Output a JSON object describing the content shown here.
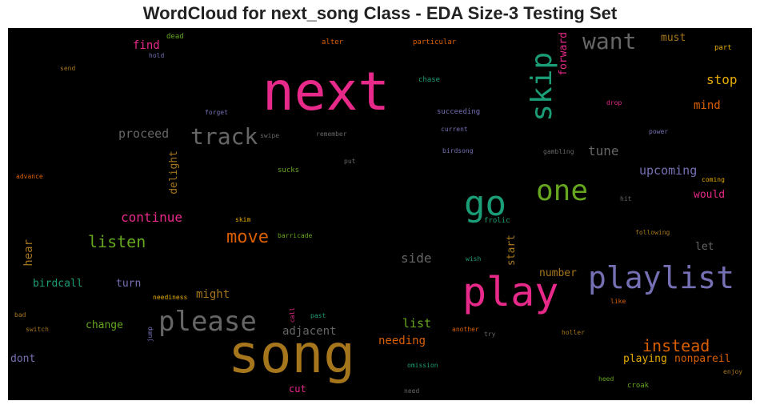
{
  "title": "WordCloud for next_song Class - EDA Size-3 Testing Set",
  "words": [
    {
      "text": "next",
      "color": "#e7298a"
    },
    {
      "text": "song",
      "color": "#a6761d"
    },
    {
      "text": "play",
      "color": "#e7298a"
    },
    {
      "text": "playlist",
      "color": "#7570b3"
    },
    {
      "text": "skip",
      "color": "#1b9e77"
    },
    {
      "text": "go",
      "color": "#1b9e77"
    },
    {
      "text": "one",
      "color": "#66a61e"
    },
    {
      "text": "please",
      "color": "#666666"
    },
    {
      "text": "track",
      "color": "#666666"
    },
    {
      "text": "want",
      "color": "#666666"
    },
    {
      "text": "move",
      "color": "#d95f02"
    },
    {
      "text": "instead",
      "color": "#d95f02"
    },
    {
      "text": "listen",
      "color": "#66a61e"
    },
    {
      "text": "continue",
      "color": "#e7298a"
    },
    {
      "text": "stop",
      "color": "#e6ab02"
    },
    {
      "text": "upcoming",
      "color": "#7570b3"
    },
    {
      "text": "tune",
      "color": "#666666"
    },
    {
      "text": "mind",
      "color": "#d95f02"
    },
    {
      "text": "must",
      "color": "#a6761d"
    },
    {
      "text": "forward",
      "color": "#e7298a"
    },
    {
      "text": "find",
      "color": "#e7298a"
    },
    {
      "text": "proceed",
      "color": "#666666"
    },
    {
      "text": "delight",
      "color": "#a6761d"
    },
    {
      "text": "hear",
      "color": "#a6761d"
    },
    {
      "text": "side",
      "color": "#666666"
    },
    {
      "text": "start",
      "color": "#a6761d"
    },
    {
      "text": "would",
      "color": "#e7298a"
    },
    {
      "text": "let",
      "color": "#666666"
    },
    {
      "text": "number",
      "color": "#a6761d"
    },
    {
      "text": "might",
      "color": "#a6761d"
    },
    {
      "text": "adjacent",
      "color": "#666666"
    },
    {
      "text": "list",
      "color": "#66a61e"
    },
    {
      "text": "needing",
      "color": "#d95f02"
    },
    {
      "text": "playing",
      "color": "#e6ab02"
    },
    {
      "text": "nonpareil",
      "color": "#d95f02"
    },
    {
      "text": "birdcall",
      "color": "#1b9e77"
    },
    {
      "text": "turn",
      "color": "#7570b3"
    },
    {
      "text": "change",
      "color": "#66a61e"
    },
    {
      "text": "dont",
      "color": "#7570b3"
    },
    {
      "text": "cut",
      "color": "#e7298a"
    },
    {
      "text": "dead",
      "color": "#66a61e"
    },
    {
      "text": "hold",
      "color": "#7570b3"
    },
    {
      "text": "alter",
      "color": "#d95f02"
    },
    {
      "text": "particular",
      "color": "#d95f02"
    },
    {
      "text": "part",
      "color": "#e6ab02"
    },
    {
      "text": "send",
      "color": "#a6761d"
    },
    {
      "text": "chase",
      "color": "#1b9e77"
    },
    {
      "text": "drop",
      "color": "#e7298a"
    },
    {
      "text": "forget",
      "color": "#7570b3"
    },
    {
      "text": "succeeding",
      "color": "#7570b3"
    },
    {
      "text": "current",
      "color": "#7570b3"
    },
    {
      "text": "power",
      "color": "#7570b3"
    },
    {
      "text": "swipe",
      "color": "#666666"
    },
    {
      "text": "remember",
      "color": "#666666"
    },
    {
      "text": "birdsong",
      "color": "#7570b3"
    },
    {
      "text": "gambling",
      "color": "#666666"
    },
    {
      "text": "advance",
      "color": "#d95f02"
    },
    {
      "text": "sucks",
      "color": "#66a61e"
    },
    {
      "text": "put",
      "color": "#666666"
    },
    {
      "text": "coming",
      "color": "#e6ab02"
    },
    {
      "text": "hit",
      "color": "#666666"
    },
    {
      "text": "skim",
      "color": "#e6ab02"
    },
    {
      "text": "frolic",
      "color": "#1b9e77"
    },
    {
      "text": "barricade",
      "color": "#66a61e"
    },
    {
      "text": "following",
      "color": "#a6761d"
    },
    {
      "text": "wish",
      "color": "#1b9e77"
    },
    {
      "text": "neediness",
      "color": "#e6ab02"
    },
    {
      "text": "past",
      "color": "#1b9e77"
    },
    {
      "text": "call",
      "color": "#e7298a"
    },
    {
      "text": "like",
      "color": "#d95f02"
    },
    {
      "text": "bad",
      "color": "#a6761d"
    },
    {
      "text": "switch",
      "color": "#a6761d"
    },
    {
      "text": "jump",
      "color": "#7570b3"
    },
    {
      "text": "another",
      "color": "#d95f02"
    },
    {
      "text": "try",
      "color": "#666666"
    },
    {
      "text": "holler",
      "color": "#a6761d"
    },
    {
      "text": "omission",
      "color": "#1b9e77"
    },
    {
      "text": "heed",
      "color": "#66a61e"
    },
    {
      "text": "croak",
      "color": "#66a61e"
    },
    {
      "text": "enjoy",
      "color": "#a6761d"
    },
    {
      "text": "need",
      "color": "#666666"
    }
  ]
}
